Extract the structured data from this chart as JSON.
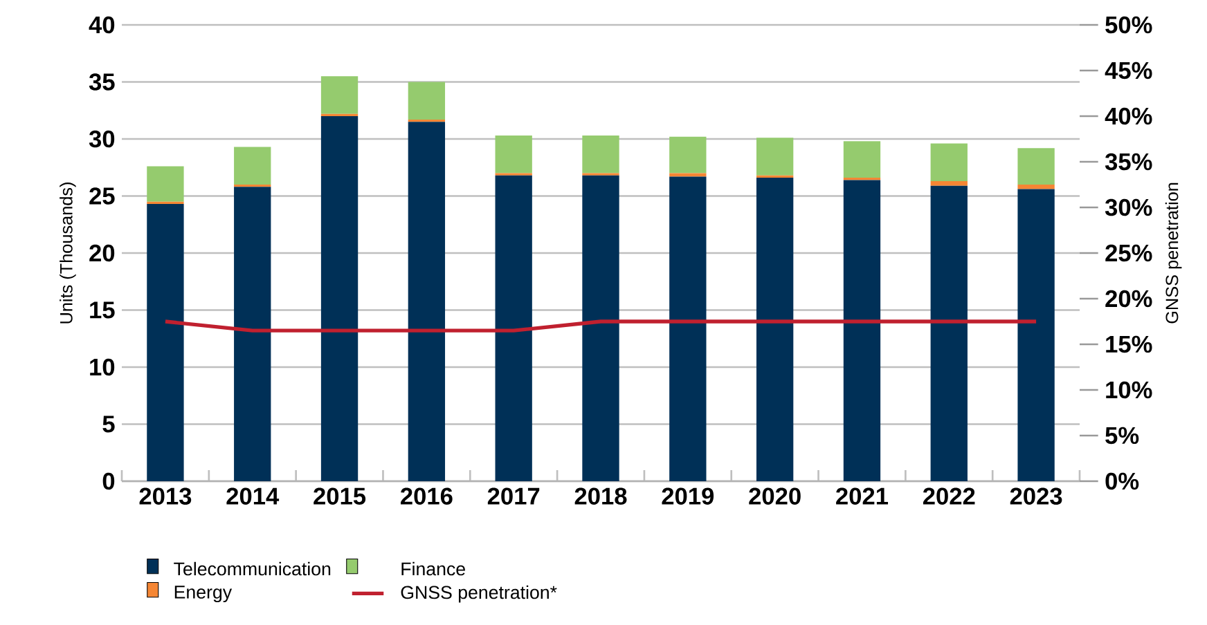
{
  "chart_data": {
    "type": "bar",
    "stacked": true,
    "ylabel": "Units (Thousands)",
    "y2label": "GNSS penetration",
    "categories": [
      "2013",
      "2014",
      "2015",
      "2016",
      "2017",
      "2018",
      "2019",
      "2020",
      "2021",
      "2022",
      "2023"
    ],
    "series": [
      {
        "name": "Telecommunication",
        "color": "#003057",
        "values": [
          24.3,
          25.8,
          32.0,
          31.5,
          26.8,
          26.8,
          26.7,
          26.6,
          26.4,
          25.9,
          25.6
        ]
      },
      {
        "name": "Energy",
        "color": "#f58634",
        "values": [
          0.2,
          0.2,
          0.2,
          0.2,
          0.2,
          0.2,
          0.3,
          0.2,
          0.2,
          0.4,
          0.4
        ]
      },
      {
        "name": "Finance",
        "color": "#95cb6e",
        "values": [
          3.1,
          3.3,
          3.3,
          3.3,
          3.3,
          3.3,
          3.2,
          3.3,
          3.2,
          3.3,
          3.2
        ]
      },
      {
        "name": "GNSS penetration*",
        "type": "line",
        "axis": "y2",
        "color": "#c0202f",
        "values": [
          17.5,
          16.5,
          16.5,
          16.5,
          16.5,
          17.5,
          17.5,
          17.5,
          17.5,
          17.5,
          17.5
        ]
      }
    ],
    "ylim": [
      0,
      40
    ],
    "yticks": [
      0,
      5,
      10,
      15,
      20,
      25,
      30,
      35,
      40
    ],
    "y2lim": [
      0,
      50
    ],
    "y2ticks": [
      {
        "value": 0,
        "label": "0%"
      },
      {
        "value": 5,
        "label": "5%"
      },
      {
        "value": 10,
        "label": "10%"
      },
      {
        "value": 15,
        "label": "15%"
      },
      {
        "value": 20,
        "label": "20%"
      },
      {
        "value": 25,
        "label": "25%"
      },
      {
        "value": 30,
        "label": "30%"
      },
      {
        "value": 35,
        "label": "35%"
      },
      {
        "value": 40,
        "label": "40%"
      },
      {
        "value": 45,
        "label": "45%"
      },
      {
        "value": 50,
        "label": "50%"
      }
    ],
    "grid": "y",
    "legend": "bottom",
    "marker": "none",
    "line_style": "solid"
  }
}
